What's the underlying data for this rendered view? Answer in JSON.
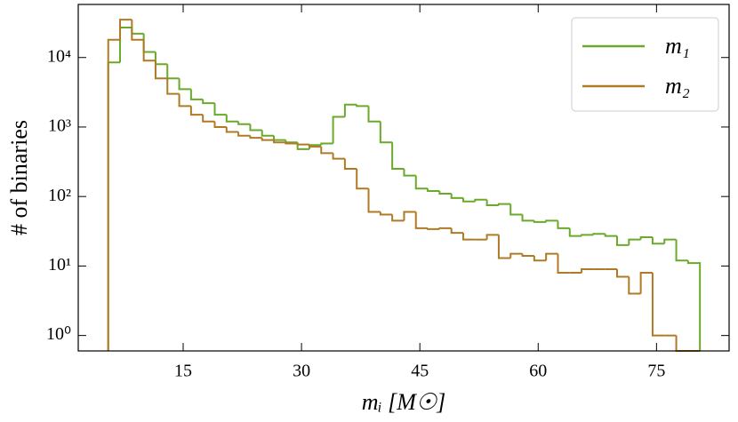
{
  "chart_data": {
    "type": "histogram",
    "xlabel": "mᵢ [M☉]",
    "ylabel": "# of binaries",
    "bins": [
      5.5,
      7,
      8.5,
      10,
      11.5,
      13,
      14.5,
      16,
      17.5,
      19,
      20.5,
      22,
      23.5,
      25,
      26.5,
      28,
      29.5,
      31,
      32.5,
      34,
      35.5,
      37,
      38.5,
      40,
      41.5,
      43,
      44.5,
      46,
      47.5,
      49,
      50.5,
      52,
      53.5,
      55,
      56.5,
      58,
      59.5,
      61,
      62.5,
      64,
      65.5,
      67,
      68.5,
      70,
      71.5,
      73,
      74.5,
      76,
      77.5,
      79,
      80.5
    ],
    "series": [
      {
        "name": "m₁",
        "color": "#6aaa2a",
        "values": [
          8500,
          27000,
          22000,
          12000,
          8000,
          5000,
          3500,
          2500,
          2200,
          1500,
          1200,
          1100,
          900,
          750,
          650,
          600,
          480,
          550,
          580,
          1400,
          2100,
          2000,
          1200,
          600,
          250,
          200,
          130,
          120,
          110,
          95,
          85,
          90,
          75,
          78,
          55,
          45,
          43,
          45,
          35,
          27,
          28,
          29,
          27,
          20,
          24,
          26,
          21,
          24,
          12,
          11
        ]
      },
      {
        "name": "m₂",
        "color": "#b07a25",
        "values": [
          18000,
          35000,
          18000,
          9000,
          5000,
          3000,
          2000,
          1500,
          1200,
          1000,
          850,
          750,
          700,
          650,
          600,
          580,
          560,
          520,
          420,
          350,
          250,
          130,
          60,
          55,
          45,
          60,
          35,
          34,
          35,
          30,
          24,
          24,
          28,
          13,
          15,
          14,
          12,
          15,
          8,
          8,
          9,
          9,
          9,
          7,
          4,
          8,
          1,
          1,
          0,
          0
        ]
      }
    ],
    "xlim": [
      1.7,
      84.2
    ],
    "xticks": [
      15,
      30,
      45,
      60,
      75
    ],
    "ylim": [
      0.6,
      58000
    ],
    "log_y": true,
    "yticks": [
      {
        "value": 1,
        "label": "10⁰"
      },
      {
        "value": 10,
        "label": "10¹"
      },
      {
        "value": 100,
        "label": "10²"
      },
      {
        "value": 1000,
        "label": "10³"
      },
      {
        "value": 10000,
        "label": "10⁴"
      }
    ],
    "legend": "upper right"
  }
}
